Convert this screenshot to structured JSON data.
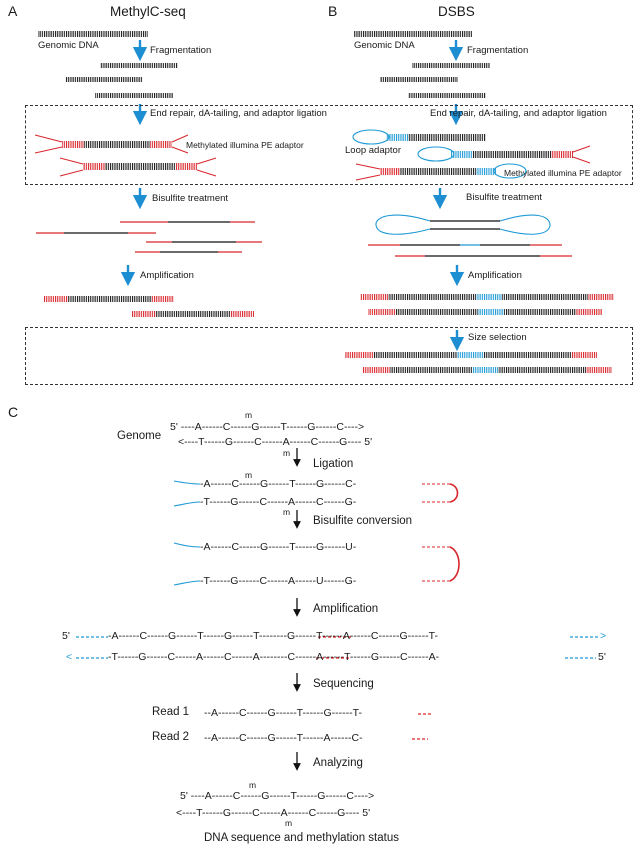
{
  "panels": {
    "a": "A",
    "b": "B",
    "c": "C"
  },
  "titles": {
    "methylc": "MethylC-seq",
    "dsbs": "DSBS"
  },
  "ab_labels": {
    "genomic_dna": "Genomic DNA",
    "fragmentation": "Fragmentation",
    "end_repair": "End repair, dA-tailing, and adaptor ligation",
    "methylated_adaptor": "Methylated illumina PE adaptor",
    "loop_adaptor": "Loop adaptor",
    "bisulfite": "Bisulfite treatment",
    "amplification": "Amplification",
    "size_selection": "Size selection"
  },
  "c_labels": {
    "genome": "Genome",
    "ligation": "Ligation",
    "bisulfite_conversion": "Bisulfite conversion",
    "amplification": "Amplification",
    "sequencing": "Sequencing",
    "read1": "Read 1",
    "read2": "Read 2",
    "analyzing": "Analyzing",
    "caption": "DNA sequence and methylation status"
  },
  "seq": {
    "g_top": "5' ----A------C------G------T------G------C---->",
    "g_m_top": "m",
    "g_bot": "<----T------G------C------A------C------G---- 5'",
    "g_m_bot": "m",
    "l_top": "-A------C------G------T------G------C-",
    "l_m_top": "m",
    "l_bot": "-T------G------C------A------C------G-",
    "l_m_bot": "m",
    "b_top": "-A------C------G------T------G------U-",
    "b_bot": "-T------G------C------A------U------G-",
    "a_top_5": "5'",
    "a_top": "-A------C------G------T------G------T--------G------T------A------C------G------T-",
    "a_bot": "-T------G------C------A------C------A--------C------A------T------G------C------A-",
    "a_bot_5": "5'",
    "r1": "--A------C------G------T------G------T-",
    "r2": "--A------C------G------T------A------C-",
    "f_top": "5' ----A------C------G------T------G------C---->",
    "f_m_top": "m",
    "f_bot": "<----T------G------C------A------C------G---- 5'",
    "f_m_bot": "m"
  }
}
